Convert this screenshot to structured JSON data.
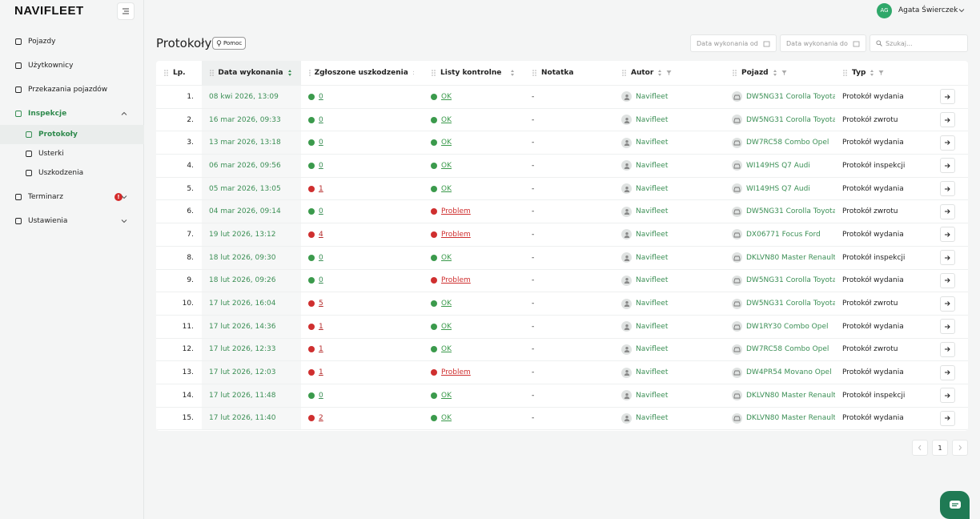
{
  "header": {
    "logo": "NAVIFLEET",
    "user": {
      "initials": "AG",
      "name": "Agata Świerczek"
    }
  },
  "sidebar": {
    "items": [
      {
        "label": "Pojazdy"
      },
      {
        "label": "Użytkownicy"
      },
      {
        "label": "Przekazania pojazdów"
      },
      {
        "label": "Inspekcje",
        "children": [
          {
            "label": "Protokoły"
          },
          {
            "label": "Usterki"
          },
          {
            "label": "Uszkodzenia"
          }
        ]
      },
      {
        "label": "Terminarz",
        "badge": "!"
      },
      {
        "label": "Ustawienia"
      }
    ]
  },
  "page": {
    "title": "Protokoły",
    "help": "Pomoc"
  },
  "filters": {
    "date_from": "Data wykonania od",
    "date_to": "Data wykonania do",
    "search": "Szukaj..."
  },
  "table": {
    "columns": [
      "Lp.",
      "Data wykonania",
      "Zgłoszone uszkodzenia",
      "Listy kontrolne",
      "Notatka",
      "Autor",
      "Pojazd",
      "Typ"
    ],
    "checklist_colors": {
      "OK": "#3b9a4c",
      "Problem": "#cf2f2f"
    },
    "rows": [
      {
        "lp": "1.",
        "date": "08 kwi 2026, 13:09",
        "damages": 0,
        "checklist": "OK",
        "note": "-",
        "author": "Navifleet",
        "vehicle": "DW5NG31 Corolla Toyota",
        "type": "Protokół wydania"
      },
      {
        "lp": "2.",
        "date": "16 mar 2026, 09:33",
        "damages": 0,
        "checklist": "OK",
        "note": "-",
        "author": "Navifleet",
        "vehicle": "DW5NG31 Corolla Toyota",
        "type": "Protokół zwrotu"
      },
      {
        "lp": "3.",
        "date": "13 mar 2026, 13:18",
        "damages": 0,
        "checklist": "OK",
        "note": "-",
        "author": "Navifleet",
        "vehicle": "DW7RC58 Combo Opel",
        "type": "Protokół wydania"
      },
      {
        "lp": "4.",
        "date": "06 mar 2026, 09:56",
        "damages": 0,
        "checklist": "OK",
        "note": "-",
        "author": "Navifleet",
        "vehicle": "WI149HS Q7 Audi",
        "type": "Protokół inspekcji"
      },
      {
        "lp": "5.",
        "date": "05 mar 2026, 13:05",
        "damages": 1,
        "checklist": "OK",
        "note": "-",
        "author": "Navifleet",
        "vehicle": "WI149HS Q7 Audi",
        "type": "Protokół wydania"
      },
      {
        "lp": "6.",
        "date": "04 mar 2026, 09:14",
        "damages": 0,
        "checklist": "Problem",
        "note": "-",
        "author": "Navifleet",
        "vehicle": "DW5NG31 Corolla Toyota",
        "type": "Protokół zwrotu"
      },
      {
        "lp": "7.",
        "date": "19 lut 2026, 13:12",
        "damages": 4,
        "checklist": "Problem",
        "note": "-",
        "author": "Navifleet",
        "vehicle": "DX06771 Focus Ford",
        "type": "Protokół wydania"
      },
      {
        "lp": "8.",
        "date": "18 lut 2026, 09:30",
        "damages": 0,
        "checklist": "OK",
        "note": "-",
        "author": "Navifleet",
        "vehicle": "DKLVN80 Master Renault",
        "type": "Protokół inspekcji"
      },
      {
        "lp": "9.",
        "date": "18 lut 2026, 09:26",
        "damages": 0,
        "checklist": "Problem",
        "note": "-",
        "author": "Navifleet",
        "vehicle": "DW5NG31 Corolla Toyota",
        "type": "Protokół wydania"
      },
      {
        "lp": "10.",
        "date": "17 lut 2026, 16:04",
        "damages": 5,
        "checklist": "OK",
        "note": "-",
        "author": "Navifleet",
        "vehicle": "DW5NG31 Corolla Toyota",
        "type": "Protokół zwrotu"
      },
      {
        "lp": "11.",
        "date": "17 lut 2026, 14:36",
        "damages": 1,
        "checklist": "OK",
        "note": "-",
        "author": "Navifleet",
        "vehicle": "DW1RY30 Combo Opel",
        "type": "Protokół wydania"
      },
      {
        "lp": "12.",
        "date": "17 lut 2026, 12:33",
        "damages": 1,
        "checklist": "OK",
        "note": "-",
        "author": "Navifleet",
        "vehicle": "DW7RC58 Combo Opel",
        "type": "Protokół zwrotu"
      },
      {
        "lp": "13.",
        "date": "17 lut 2026, 12:03",
        "damages": 1,
        "checklist": "Problem",
        "note": "-",
        "author": "Navifleet",
        "vehicle": "DW4PR54 Movano Opel",
        "type": "Protokół wydania"
      },
      {
        "lp": "14.",
        "date": "17 lut 2026, 11:48",
        "damages": 0,
        "checklist": "OK",
        "note": "-",
        "author": "Navifleet",
        "vehicle": "DKLVN80 Master Renault",
        "type": "Protokół inspekcji"
      },
      {
        "lp": "15.",
        "date": "17 lut 2026, 11:40",
        "damages": 2,
        "checklist": "OK",
        "note": "-",
        "author": "Navifleet",
        "vehicle": "DKLVN80 Master Renault",
        "type": "Protokół wydania"
      }
    ]
  },
  "pagination": {
    "current": 1
  }
}
